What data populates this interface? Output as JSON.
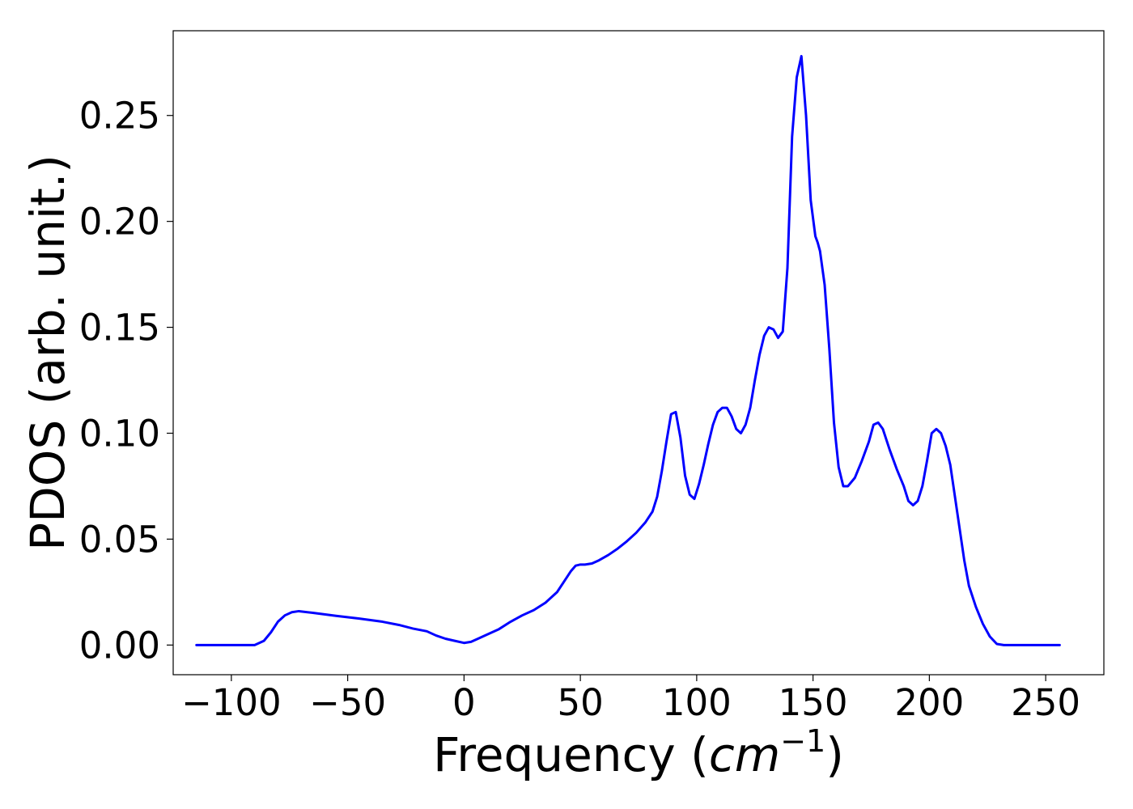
{
  "chart_data": {
    "type": "line",
    "xlabel": "Frequency (",
    "xlabel_math": "cm",
    "xlabel_sup": "−1",
    "xlabel_close": ")",
    "ylabel": "PDOS (arb. unit.)",
    "xlim": [
      -125,
      275
    ],
    "ylim": [
      -0.014,
      0.29
    ],
    "xticks": [
      -100,
      -50,
      0,
      50,
      100,
      150,
      200,
      250
    ],
    "xtick_labels": [
      "−100",
      "−50",
      "0",
      "50",
      "100",
      "150",
      "200",
      "250"
    ],
    "yticks": [
      0.0,
      0.05,
      0.1,
      0.15,
      0.2,
      0.25
    ],
    "ytick_labels": [
      "0.00",
      "0.05",
      "0.10",
      "0.15",
      "0.20",
      "0.25"
    ],
    "grid": false,
    "line_color": "#0000ff",
    "series": [
      {
        "x": [
          -115,
          -90,
          -86,
          -83,
          -80,
          -77,
          -74,
          -71,
          -65,
          -55,
          -45,
          -35,
          -28,
          -22,
          -16,
          -12,
          -8,
          -4,
          0,
          3,
          6,
          10,
          15,
          20,
          25,
          30,
          35,
          40,
          43,
          46,
          48,
          50,
          52,
          55,
          58,
          62,
          66,
          70,
          74,
          78,
          81,
          83,
          85,
          87,
          89,
          91,
          93,
          95,
          97,
          99,
          101,
          103,
          105,
          107,
          109,
          111,
          113,
          115,
          117,
          119,
          121,
          123,
          125,
          127,
          129,
          131,
          133,
          135,
          137,
          139,
          141,
          143,
          145,
          147,
          149,
          151,
          152,
          153,
          155,
          157,
          159,
          161,
          163,
          165,
          168,
          171,
          174,
          176,
          178,
          180,
          183,
          186,
          189,
          191,
          193,
          195,
          197,
          199,
          201,
          203,
          205,
          207,
          209,
          211,
          213,
          215,
          217,
          220,
          223,
          226,
          229,
          232,
          240,
          256
        ],
        "y": [
          0.0,
          0.0,
          0.002,
          0.006,
          0.011,
          0.014,
          0.0155,
          0.016,
          0.0152,
          0.0138,
          0.0125,
          0.011,
          0.0095,
          0.0078,
          0.0065,
          0.0045,
          0.003,
          0.002,
          0.001,
          0.0015,
          0.003,
          0.005,
          0.0075,
          0.011,
          0.014,
          0.0165,
          0.02,
          0.025,
          0.03,
          0.035,
          0.0375,
          0.038,
          0.038,
          0.0385,
          0.04,
          0.0425,
          0.0455,
          0.049,
          0.053,
          0.058,
          0.063,
          0.07,
          0.082,
          0.096,
          0.109,
          0.11,
          0.098,
          0.08,
          0.071,
          0.069,
          0.076,
          0.085,
          0.095,
          0.104,
          0.11,
          0.112,
          0.112,
          0.108,
          0.102,
          0.1,
          0.104,
          0.112,
          0.125,
          0.137,
          0.146,
          0.15,
          0.149,
          0.145,
          0.148,
          0.178,
          0.24,
          0.268,
          0.278,
          0.25,
          0.21,
          0.193,
          0.19,
          0.186,
          0.17,
          0.14,
          0.105,
          0.084,
          0.075,
          0.075,
          0.079,
          0.087,
          0.096,
          0.104,
          0.105,
          0.102,
          0.092,
          0.083,
          0.075,
          0.068,
          0.066,
          0.068,
          0.075,
          0.087,
          0.1,
          0.102,
          0.1,
          0.094,
          0.085,
          0.07,
          0.055,
          0.04,
          0.028,
          0.018,
          0.01,
          0.004,
          0.0005,
          0.0,
          0.0,
          0.0
        ]
      }
    ]
  }
}
